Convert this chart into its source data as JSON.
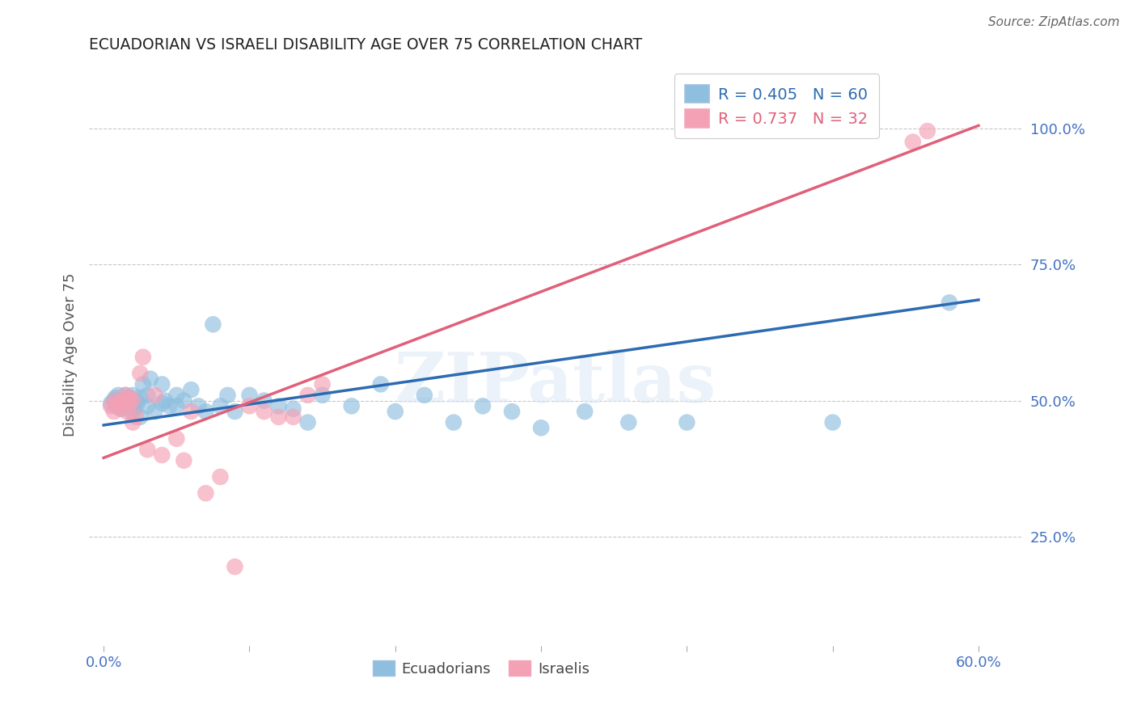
{
  "title": "ECUADORIAN VS ISRAELI DISABILITY AGE OVER 75 CORRELATION CHART",
  "source": "Source: ZipAtlas.com",
  "ylabel": "Disability Age Over 75",
  "x_ticks": [
    0.0,
    0.1,
    0.2,
    0.3,
    0.4,
    0.5,
    0.6
  ],
  "x_tick_labels": [
    "0.0%",
    "",
    "",
    "",
    "",
    "",
    "60.0%"
  ],
  "y_ticks": [
    0.25,
    0.5,
    0.75,
    1.0
  ],
  "y_tick_labels": [
    "25.0%",
    "50.0%",
    "75.0%",
    "100.0%"
  ],
  "xlim": [
    -0.01,
    0.63
  ],
  "ylim": [
    0.05,
    1.12
  ],
  "blue_R": 0.405,
  "blue_N": 60,
  "pink_R": 0.737,
  "pink_N": 32,
  "blue_color": "#8fbfdf",
  "pink_color": "#f4a0b5",
  "blue_line_color": "#2d6bb0",
  "pink_line_color": "#e0607a",
  "watermark": "ZIPatlas",
  "blue_scatter_x": [
    0.005,
    0.007,
    0.008,
    0.009,
    0.01,
    0.01,
    0.01,
    0.012,
    0.013,
    0.015,
    0.016,
    0.017,
    0.018,
    0.019,
    0.02,
    0.02,
    0.02,
    0.021,
    0.022,
    0.023,
    0.025,
    0.025,
    0.027,
    0.03,
    0.03,
    0.032,
    0.035,
    0.04,
    0.04,
    0.042,
    0.045,
    0.05,
    0.05,
    0.055,
    0.06,
    0.065,
    0.07,
    0.075,
    0.08,
    0.085,
    0.09,
    0.1,
    0.11,
    0.12,
    0.13,
    0.14,
    0.15,
    0.17,
    0.19,
    0.2,
    0.22,
    0.24,
    0.26,
    0.28,
    0.3,
    0.33,
    0.36,
    0.4,
    0.5,
    0.58
  ],
  "blue_scatter_y": [
    0.495,
    0.5,
    0.505,
    0.49,
    0.51,
    0.495,
    0.5,
    0.485,
    0.5,
    0.51,
    0.49,
    0.495,
    0.505,
    0.48,
    0.5,
    0.49,
    0.51,
    0.485,
    0.5,
    0.495,
    0.47,
    0.505,
    0.53,
    0.49,
    0.51,
    0.54,
    0.48,
    0.495,
    0.53,
    0.5,
    0.49,
    0.51,
    0.49,
    0.5,
    0.52,
    0.49,
    0.48,
    0.64,
    0.49,
    0.51,
    0.48,
    0.51,
    0.5,
    0.49,
    0.485,
    0.46,
    0.51,
    0.49,
    0.53,
    0.48,
    0.51,
    0.46,
    0.49,
    0.48,
    0.45,
    0.48,
    0.46,
    0.46,
    0.46,
    0.68
  ],
  "pink_scatter_x": [
    0.005,
    0.007,
    0.008,
    0.01,
    0.012,
    0.013,
    0.015,
    0.016,
    0.017,
    0.018,
    0.02,
    0.02,
    0.022,
    0.025,
    0.027,
    0.03,
    0.035,
    0.04,
    0.05,
    0.055,
    0.06,
    0.07,
    0.08,
    0.09,
    0.1,
    0.11,
    0.12,
    0.13,
    0.14,
    0.15,
    0.555,
    0.565
  ],
  "pink_scatter_y": [
    0.49,
    0.48,
    0.5,
    0.495,
    0.485,
    0.5,
    0.51,
    0.48,
    0.495,
    0.505,
    0.46,
    0.5,
    0.47,
    0.55,
    0.58,
    0.41,
    0.51,
    0.4,
    0.43,
    0.39,
    0.48,
    0.33,
    0.36,
    0.195,
    0.49,
    0.48,
    0.47,
    0.47,
    0.51,
    0.53,
    0.975,
    0.995
  ],
  "blue_line_x": [
    0.0,
    0.6
  ],
  "blue_line_y": [
    0.455,
    0.685
  ],
  "pink_line_x": [
    0.0,
    0.6
  ],
  "pink_line_y": [
    0.395,
    1.005
  ]
}
